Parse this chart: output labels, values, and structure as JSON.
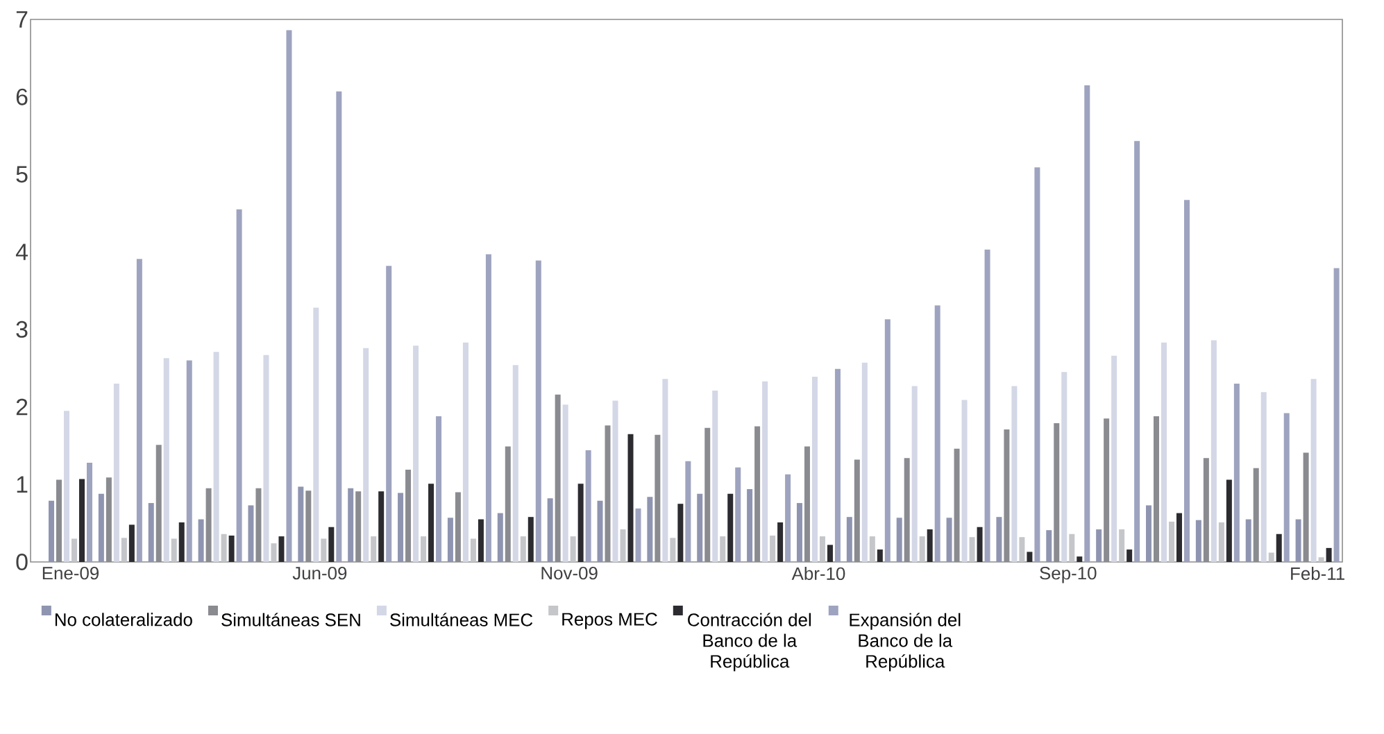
{
  "chart_data": {
    "type": "bar",
    "categories": [
      "Ene-09",
      null,
      null,
      null,
      null,
      "Jun-09",
      null,
      null,
      null,
      null,
      "Nov-09",
      null,
      null,
      null,
      null,
      "Abr-10",
      null,
      null,
      null,
      null,
      "Sep-10",
      null,
      null,
      null,
      null,
      "Feb-11"
    ],
    "series": [
      {
        "name": "No colateralizado",
        "color": "#8f95b0",
        "values": [
          0.79,
          0.88,
          0.76,
          0.55,
          0.73,
          0.97,
          0.95,
          0.89,
          0.57,
          0.63,
          0.82,
          0.79,
          0.84,
          0.88,
          0.94,
          0.76,
          0.58,
          0.57,
          0.57,
          0.58,
          0.41,
          0.42,
          0.73,
          0.54,
          0.55,
          0.55
        ]
      },
      {
        "name": "Simultáneas SEN",
        "color": "#8a8b90",
        "values": [
          1.06,
          1.09,
          1.51,
          0.95,
          0.95,
          0.92,
          0.91,
          1.19,
          0.9,
          1.49,
          2.16,
          1.76,
          1.64,
          1.73,
          1.75,
          1.49,
          1.32,
          1.34,
          1.46,
          1.71,
          1.79,
          1.85,
          1.88,
          1.34,
          1.21,
          1.41
        ]
      },
      {
        "name": "Simultáneas MEC",
        "color": "#d3d7e6",
        "values": [
          1.95,
          2.3,
          2.63,
          2.71,
          2.67,
          3.28,
          2.76,
          2.79,
          2.83,
          2.54,
          2.03,
          2.08,
          2.36,
          2.21,
          2.33,
          2.39,
          2.57,
          2.27,
          2.09,
          2.27,
          2.45,
          2.66,
          2.83,
          2.86,
          2.19,
          2.36
        ]
      },
      {
        "name": "Repos MEC",
        "color": "#c5c6ca",
        "values": [
          0.3,
          0.31,
          0.3,
          0.36,
          0.24,
          0.3,
          0.33,
          0.33,
          0.3,
          0.33,
          0.33,
          0.42,
          0.31,
          0.33,
          0.34,
          0.33,
          0.33,
          0.33,
          0.32,
          0.32,
          0.36,
          0.42,
          0.52,
          0.51,
          0.12,
          0.06
        ]
      },
      {
        "name": "Contracción del Banco de la República",
        "color": "#2b2b30",
        "values": [
          1.07,
          0.48,
          0.51,
          0.34,
          0.33,
          0.45,
          0.91,
          1.01,
          0.55,
          0.58,
          1.01,
          1.65,
          0.75,
          0.88,
          0.51,
          0.22,
          0.16,
          0.42,
          0.45,
          0.13,
          0.07,
          0.16,
          0.63,
          1.06,
          0.36,
          0.18
        ]
      },
      {
        "name": "Expansión del Banco de la República",
        "color": "#9ea3bf",
        "values": [
          1.28,
          3.91,
          2.6,
          4.55,
          6.86,
          6.07,
          3.82,
          1.88,
          3.97,
          3.89,
          1.44,
          0.69,
          1.3,
          1.22,
          1.13,
          2.49,
          3.13,
          3.31,
          4.03,
          5.09,
          6.15,
          5.43,
          4.67,
          2.3,
          1.92,
          3.79
        ]
      }
    ],
    "ylim": [
      0,
      7
    ],
    "yticks": [
      0,
      1,
      2,
      3,
      4,
      5,
      6,
      7
    ],
    "legend": "bottom"
  }
}
